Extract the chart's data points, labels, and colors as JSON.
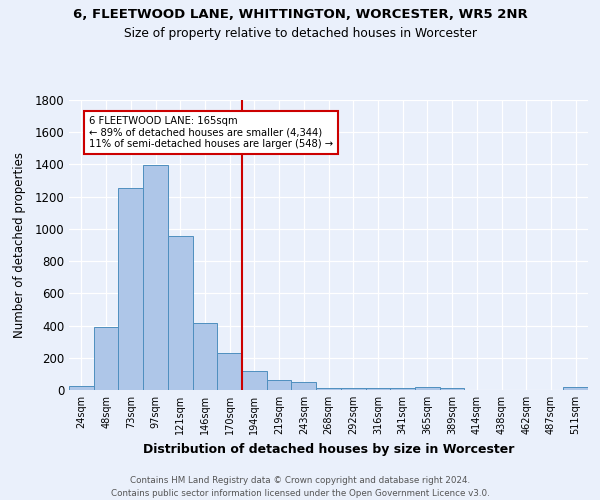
{
  "title": "6, FLEETWOOD LANE, WHITTINGTON, WORCESTER, WR5 2NR",
  "subtitle": "Size of property relative to detached houses in Worcester",
  "xlabel": "Distribution of detached houses by size in Worcester",
  "ylabel": "Number of detached properties",
  "bar_labels": [
    "24sqm",
    "48sqm",
    "73sqm",
    "97sqm",
    "121sqm",
    "146sqm",
    "170sqm",
    "194sqm",
    "219sqm",
    "243sqm",
    "268sqm",
    "292sqm",
    "316sqm",
    "341sqm",
    "365sqm",
    "389sqm",
    "414sqm",
    "438sqm",
    "462sqm",
    "487sqm",
    "511sqm"
  ],
  "bar_values": [
    25,
    390,
    1255,
    1395,
    955,
    415,
    230,
    115,
    65,
    50,
    15,
    10,
    10,
    10,
    20,
    10,
    0,
    0,
    0,
    0,
    20
  ],
  "bar_color": "#aec6e8",
  "bar_edgecolor": "#4f8fbf",
  "background_color": "#eaf0fb",
  "vline_x": 6.5,
  "vline_color": "#cc0000",
  "annotation_line1": "6 FLEETWOOD LANE: 165sqm",
  "annotation_line2": "← 89% of detached houses are smaller (4,344)",
  "annotation_line3": "11% of semi-detached houses are larger (548) →",
  "annotation_box_facecolor": "#ffffff",
  "annotation_box_edgecolor": "#cc0000",
  "ylim": [
    0,
    1800
  ],
  "yticks": [
    0,
    200,
    400,
    600,
    800,
    1000,
    1200,
    1400,
    1600,
    1800
  ],
  "footer_line1": "Contains HM Land Registry data © Crown copyright and database right 2024.",
  "footer_line2": "Contains public sector information licensed under the Open Government Licence v3.0."
}
